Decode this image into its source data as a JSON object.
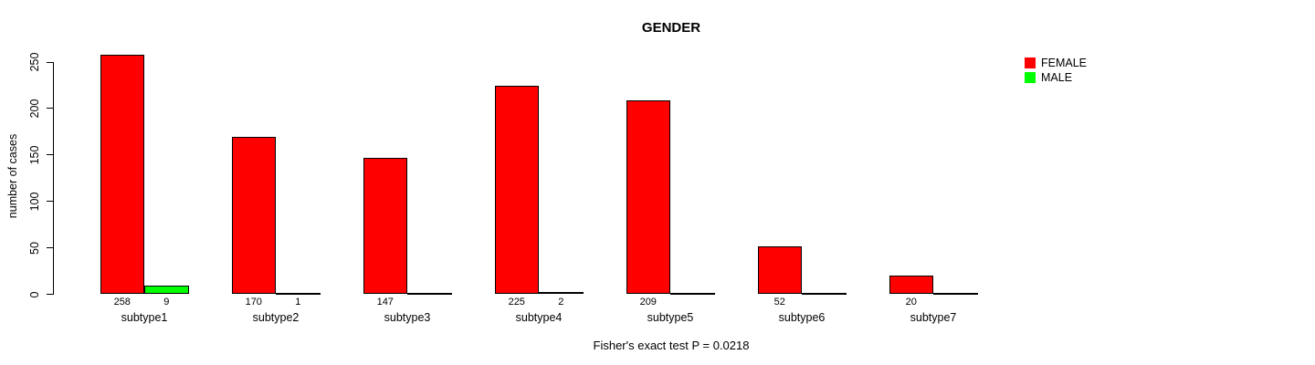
{
  "chart_data": {
    "type": "bar",
    "title": "GENDER",
    "ylabel": "number of cases",
    "xlabel": "",
    "categories": [
      "subtype1",
      "subtype2",
      "subtype3",
      "subtype4",
      "subtype5",
      "subtype6",
      "subtype7"
    ],
    "series": [
      {
        "name": "FEMALE",
        "color": "#ff0000",
        "values": [
          258,
          170,
          147,
          225,
          209,
          52,
          20
        ]
      },
      {
        "name": "MALE",
        "color": "#00ff00",
        "values": [
          9,
          1,
          0,
          2,
          0,
          0,
          0
        ]
      }
    ],
    "bar_value_labels": {
      "FEMALE": [
        "258",
        "170",
        "147",
        "225",
        "209",
        "52",
        "20"
      ],
      "MALE": [
        "9",
        "1",
        "",
        "2",
        "",
        "",
        ""
      ]
    },
    "yticks": [
      0,
      50,
      100,
      150,
      200,
      250
    ],
    "ylim": [
      0,
      250
    ],
    "grid": false,
    "legend_position": "top-right",
    "annotation": "Fisher's exact test P = 0.0218",
    "colors": {
      "female": "#ff0000",
      "male": "#00ff00",
      "axis": "#000000",
      "background": "#ffffff"
    }
  }
}
